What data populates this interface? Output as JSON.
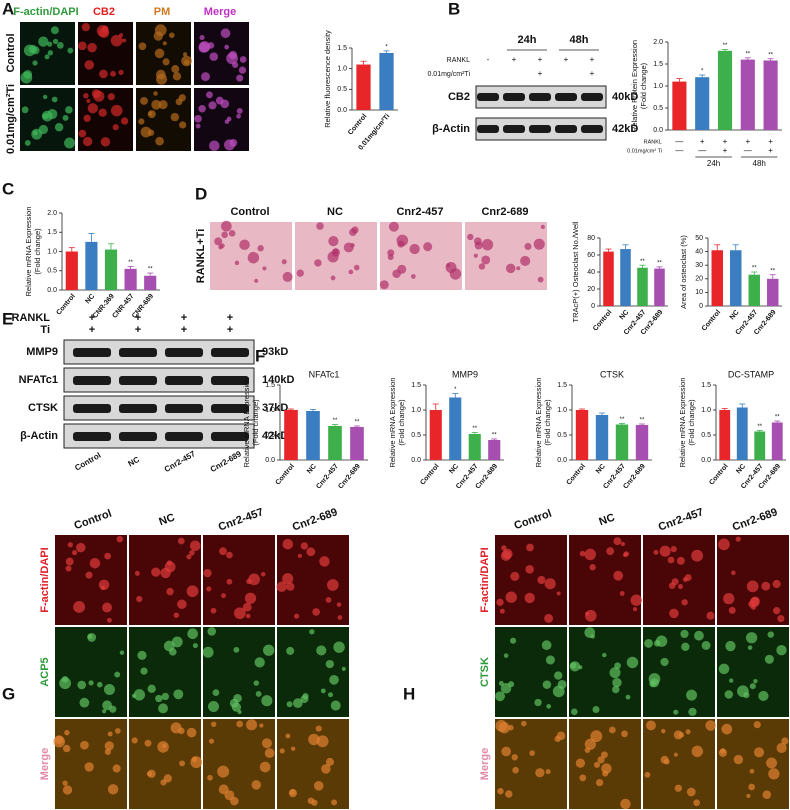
{
  "figure": {
    "panel_labels": [
      "A",
      "B",
      "C",
      "D",
      "E",
      "F",
      "G",
      "H"
    ],
    "a": {
      "columns": [
        "F-actin/DAPI",
        "CB2",
        "PM",
        "Merge"
      ],
      "rows": [
        "Control",
        "0.01mg/cm²Ti"
      ]
    },
    "b": {
      "times": [
        "24h",
        "48h"
      ],
      "row_labels": [
        "RANKL",
        "0.01mg/cm²Ti"
      ],
      "rankl": [
        "-",
        "+",
        "+",
        "+",
        "+"
      ],
      "ti": [
        null,
        null,
        "+",
        null,
        "+"
      ],
      "bands": [
        "CB2",
        "β-Actin"
      ],
      "sizes": [
        "40kD",
        "42kD"
      ]
    },
    "d": {
      "columns": [
        "Control",
        "NC",
        "Cnr2-457",
        "Cnr2-689"
      ],
      "row": "RANKL+Ti"
    },
    "e": {
      "row_labels": [
        "RANKL",
        "Ti"
      ],
      "rankl": [
        "+",
        "+",
        "+",
        "+"
      ],
      "ti": [
        "+",
        "+",
        "+",
        "+"
      ],
      "bands": [
        "MMP9",
        "NFATc1",
        "CTSK",
        "β-Actin"
      ],
      "sizes": [
        "93kD",
        "140kD",
        "37kD",
        "42kD"
      ],
      "lanes": [
        "Control",
        "NC",
        "Cnr2-457",
        "Cnr2-689"
      ]
    },
    "g": {
      "columns": [
        "Control",
        "NC",
        "Cnr2-457",
        "Cnr2-689"
      ],
      "rows": [
        "F-actin/DAPI",
        "ACP5",
        "Merge"
      ]
    },
    "h": {
      "columns": [
        "Control",
        "NC",
        "Cnr2-457",
        "Cnr2-689"
      ],
      "rows": [
        "F-actin/DAPI",
        "CTSK",
        "Merge"
      ]
    }
  },
  "chart_data": [
    {
      "type": "bar",
      "ylabel": [
        "Relative fluorescence density"
      ],
      "categories": [
        "Control",
        "0.01mg/cm²Ti"
      ],
      "values": [
        1.1,
        1.38
      ],
      "errors": [
        0.08,
        0.05
      ],
      "colors": [
        "#e8262a",
        "#3a7dc1"
      ],
      "annotations": [
        null,
        "*"
      ],
      "ylim": [
        0,
        1.5
      ],
      "yticks": [
        {
          "value": 0,
          "label": "0.0"
        },
        0.5,
        {
          "value": 1,
          "label": "1.0"
        },
        1.5
      ]
    },
    {
      "type": "bar",
      "ylabel": [
        "Relative Protein Expression",
        "(Fold change)"
      ],
      "values": [
        1.1,
        1.2,
        1.8,
        1.6,
        1.58
      ],
      "errors": [
        0.07,
        0.05,
        0.03,
        0.04,
        0.04
      ],
      "colors": [
        "#e8262a",
        "#3a7dc1",
        "#3db04b",
        "#a64fb0",
        "#a64fb0"
      ],
      "annotations": [
        null,
        "*",
        "**",
        "**",
        "**"
      ],
      "ylim": [
        0,
        2
      ],
      "yticks": [
        {
          "value": 0,
          "label": "0.0"
        },
        0.5,
        {
          "value": 1,
          "label": "1.0"
        },
        1.5,
        {
          "value": 2,
          "label": "2.0"
        }
      ],
      "table": {
        "row_labels": [
          "RANKL",
          "0.01mg/cm² Ti"
        ],
        "rankl": [
          "—",
          "+",
          "+",
          "+",
          "+"
        ],
        "ti": [
          "—",
          "—",
          "+",
          "—",
          "+"
        ],
        "times": [
          "24h",
          "48h"
        ]
      }
    },
    {
      "type": "bar",
      "ylabel": [
        "Relative mRNA Expression",
        "(Fold change)"
      ],
      "categories": [
        "Control",
        "NC",
        "CNR-369",
        "CNR-457",
        "CNR-689"
      ],
      "values": [
        1,
        1.25,
        1.05,
        0.55,
        0.37
      ],
      "errors": [
        0.1,
        0.22,
        0.15,
        0.06,
        0.07
      ],
      "colors": [
        "#e8262a",
        "#3a7dc1",
        "#3db04b",
        "#a64fb0",
        "#a64fb0"
      ],
      "annotations": [
        null,
        null,
        null,
        "**",
        "**"
      ],
      "ylim": [
        0,
        2
      ],
      "yticks": [
        {
          "value": 0,
          "label": "0.0"
        },
        0.5,
        {
          "value": 1,
          "label": "1.0"
        },
        1.5,
        {
          "value": 2,
          "label": "2.0"
        }
      ]
    },
    {
      "type": "bar",
      "ylabel": [
        "TRAcP(+) Osteoclast No./Well"
      ],
      "categories": [
        "Control",
        "NC",
        "Cnr2-457",
        "Cnr2-689"
      ],
      "values": [
        64,
        67,
        45,
        44
      ],
      "errors": [
        3,
        5,
        3,
        2
      ],
      "colors": [
        "#e8262a",
        "#3a7dc1",
        "#3db04b",
        "#a64fb0"
      ],
      "annotations": [
        null,
        null,
        "**",
        "**"
      ],
      "ylim": [
        0,
        80
      ],
      "yticks": [
        0,
        20,
        40,
        60,
        80
      ]
    },
    {
      "type": "bar",
      "ylabel": [
        "Area of osteoclast (%)"
      ],
      "categories": [
        "Control",
        "NC",
        "Cnr2-457",
        "Cnr2-689"
      ],
      "values": [
        41,
        41,
        23,
        20
      ],
      "errors": [
        4,
        4,
        2,
        3
      ],
      "colors": [
        "#e8262a",
        "#3a7dc1",
        "#3db04b",
        "#a64fb0"
      ],
      "annotations": [
        null,
        null,
        "**",
        "**"
      ],
      "ylim": [
        0,
        50
      ],
      "yticks": [
        0,
        10,
        20,
        30,
        40,
        50
      ]
    },
    {
      "type": "bar",
      "title": "NFATc1",
      "ylabel": [
        "Relative mRNA Expression",
        "(Fold change)"
      ],
      "categories": [
        "Control",
        "NC",
        "Cnr2-457",
        "Cnr2-689"
      ],
      "values": [
        1,
        0.98,
        0.68,
        0.66
      ],
      "errors": [
        0.02,
        0.03,
        0.03,
        0.02
      ],
      "colors": [
        "#e8262a",
        "#3a7dc1",
        "#3db04b",
        "#a64fb0"
      ],
      "annotations": [
        null,
        null,
        "**",
        "**"
      ],
      "ylim": [
        0,
        1.5
      ],
      "yticks": [
        {
          "value": 0,
          "label": "0.0"
        },
        0.5,
        {
          "value": 1,
          "label": "1.0"
        },
        1.5
      ]
    },
    {
      "type": "bar",
      "title": "MMP9",
      "ylabel": [
        "Relative mRNA Expression",
        "(Fold change)"
      ],
      "categories": [
        "Control",
        "NC",
        "Cnr2-457",
        "Cnr2-689"
      ],
      "values": [
        1,
        1.25,
        0.52,
        0.4
      ],
      "errors": [
        0.12,
        0.08,
        0.03,
        0.02
      ],
      "colors": [
        "#e8262a",
        "#3a7dc1",
        "#3db04b",
        "#a64fb0"
      ],
      "annotations": [
        null,
        "*",
        "**",
        "**"
      ],
      "ylim": [
        0,
        1.5
      ],
      "yticks": [
        {
          "value": 0,
          "label": "0.0"
        },
        0.5,
        {
          "value": 1,
          "label": "1.0"
        },
        1.5
      ]
    },
    {
      "type": "bar",
      "title": "CTSK",
      "ylabel": [
        "Relative mRNA Expression",
        "(Fold change)"
      ],
      "categories": [
        "Control",
        "NC",
        "Cnr2-457",
        "Cnr2-689"
      ],
      "values": [
        1,
        0.9,
        0.71,
        0.7
      ],
      "errors": [
        0.02,
        0.04,
        0.02,
        0.02
      ],
      "colors": [
        "#e8262a",
        "#3a7dc1",
        "#3db04b",
        "#a64fb0"
      ],
      "annotations": [
        null,
        null,
        "**",
        "**"
      ],
      "ylim": [
        0,
        1.5
      ],
      "yticks": [
        {
          "value": 0,
          "label": "0.0"
        },
        0.5,
        {
          "value": 1,
          "label": "1.0"
        },
        1.5
      ]
    },
    {
      "type": "bar",
      "title": "DC-STAMP",
      "ylabel": [
        "Relative mRNA Expression",
        "(Fold change)"
      ],
      "categories": [
        "Control",
        "NC",
        "Cnr2-457",
        "Cnr2-689"
      ],
      "values": [
        1,
        1.05,
        0.57,
        0.75
      ],
      "errors": [
        0.03,
        0.07,
        0.02,
        0.03
      ],
      "colors": [
        "#e8262a",
        "#3a7dc1",
        "#3db04b",
        "#a64fb0"
      ],
      "annotations": [
        null,
        null,
        "**",
        "**"
      ],
      "ylim": [
        0,
        1.5
      ],
      "yticks": [
        {
          "value": 0,
          "label": "0.0"
        },
        0.5,
        {
          "value": 1,
          "label": "1.0"
        },
        1.5
      ]
    }
  ]
}
